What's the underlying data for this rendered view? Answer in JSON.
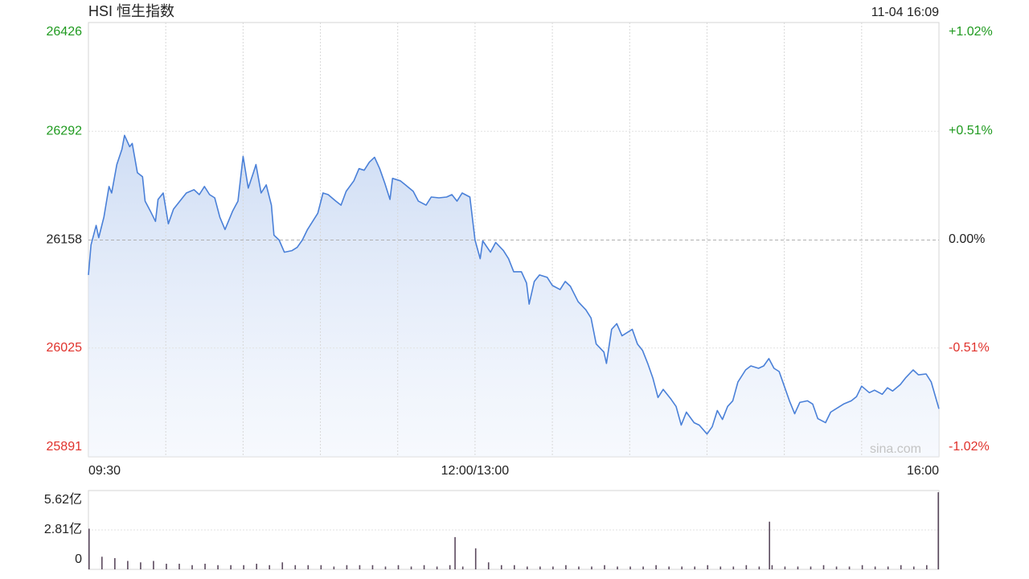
{
  "chart_data": [
    {
      "type": "line",
      "title": "HSI 恒生指数",
      "timestamp": "11-04 16:09",
      "watermark": "sina.com",
      "color": "#4a80d8",
      "up_color": "#1f9a1f",
      "down_color": "#e0322c",
      "grid": true,
      "reference_line": 26158,
      "xlim": [
        0,
        330
      ],
      "xticks": [
        {
          "value": 0,
          "label": "09:30"
        },
        {
          "value": 150,
          "label": "12:00/13:00"
        },
        {
          "value": 330,
          "label": "16:00"
        }
      ],
      "ylim": [
        25891,
        26426
      ],
      "yticks": [
        26426,
        26292,
        26158,
        26025,
        25891
      ],
      "y2lim": [
        -1.02,
        1.02
      ],
      "y2ticks": [
        {
          "value": 1.02,
          "label": "+1.02%"
        },
        {
          "value": 0.51,
          "label": "+0.51%"
        },
        {
          "value": 0,
          "label": "0.00%"
        },
        {
          "value": -0.51,
          "label": "-0.51%"
        },
        {
          "value": -1.02,
          "label": "-1.02%"
        }
      ],
      "x": [
        0,
        1,
        3,
        4,
        6,
        8,
        9,
        11,
        13,
        14,
        16,
        17,
        19,
        21,
        22,
        24,
        26,
        27,
        29,
        31,
        33,
        36,
        38,
        41,
        43,
        45,
        47,
        49,
        51,
        53,
        56,
        58,
        60,
        62,
        64,
        65,
        67,
        69,
        71,
        72,
        74,
        76,
        79,
        81,
        83,
        85,
        87,
        89,
        91,
        93,
        96,
        98,
        100,
        103,
        105,
        107,
        109,
        111,
        113,
        115,
        117,
        118,
        121,
        123,
        126,
        128,
        131,
        133,
        136,
        139,
        141,
        143,
        145,
        148,
        150,
        152,
        153,
        156,
        158,
        161,
        163,
        165,
        168,
        170,
        171,
        173,
        175,
        178,
        180,
        183,
        185,
        187,
        190,
        193,
        195,
        197,
        200,
        201,
        203,
        205,
        207,
        209,
        211,
        213,
        215,
        217,
        219,
        221,
        223,
        226,
        228,
        230,
        232,
        235,
        237,
        240,
        242,
        244,
        246,
        248,
        250,
        252,
        255,
        257,
        260,
        262,
        264,
        266,
        268,
        270,
        272,
        274,
        276,
        279,
        281,
        283,
        286,
        288,
        291,
        293,
        296,
        298,
        300,
        303,
        305,
        308,
        310,
        312,
        315,
        317,
        320,
        322,
        325,
        327,
        330
      ],
      "values": [
        26115,
        26152,
        26176,
        26161,
        26186,
        26224,
        26216,
        26251,
        26270,
        26287,
        26273,
        26277,
        26241,
        26236,
        26206,
        26194,
        26181,
        26208,
        26216,
        26178,
        26196,
        26208,
        26216,
        26220,
        26214,
        26224,
        26214,
        26210,
        26186,
        26171,
        26194,
        26206,
        26261,
        26222,
        26241,
        26251,
        26216,
        26226,
        26201,
        26164,
        26158,
        26143,
        26145,
        26149,
        26158,
        26171,
        26181,
        26191,
        26216,
        26214,
        26206,
        26201,
        26218,
        26231,
        26246,
        26244,
        26254,
        26260,
        26246,
        26228,
        26208,
        26234,
        26231,
        26226,
        26218,
        26206,
        26201,
        26211,
        26210,
        26211,
        26214,
        26206,
        26216,
        26211,
        26158,
        26135,
        26157,
        26143,
        26155,
        26145,
        26135,
        26119,
        26119,
        26105,
        26079,
        26107,
        26115,
        26112,
        26102,
        26097,
        26107,
        26101,
        26082,
        26072,
        26062,
        26030,
        26020,
        26006,
        26048,
        26055,
        26040,
        26044,
        26048,
        26030,
        26022,
        26006,
        25988,
        25964,
        25974,
        25962,
        25953,
        25930,
        25946,
        25933,
        25930,
        25919,
        25928,
        25948,
        25937,
        25953,
        25960,
        25983,
        25998,
        26003,
        26000,
        26003,
        26012,
        26000,
        25996,
        25978,
        25960,
        25944,
        25958,
        25960,
        25956,
        25938,
        25933,
        25946,
        25952,
        25956,
        25960,
        25965,
        25978,
        25970,
        25973,
        25968,
        25976,
        25972,
        25980,
        25988,
        25998,
        25992,
        25993,
        25983,
        25950
      ]
    },
    {
      "type": "bar",
      "color": "#5b4a5e",
      "grid": true,
      "xlim": [
        0,
        330
      ],
      "ylim": [
        0,
        5.62
      ],
      "yticks": [
        {
          "value": 5.62,
          "label": "5.62亿"
        },
        {
          "value": 2.81,
          "label": "2.81亿"
        },
        0
      ],
      "x": [
        0,
        5,
        10,
        15,
        20,
        25,
        30,
        35,
        40,
        45,
        50,
        55,
        60,
        65,
        70,
        75,
        80,
        85,
        90,
        95,
        100,
        105,
        110,
        115,
        120,
        125,
        130,
        135,
        140,
        142,
        145,
        150,
        155,
        160,
        165,
        170,
        175,
        180,
        185,
        190,
        195,
        200,
        205,
        210,
        215,
        220,
        225,
        230,
        235,
        240,
        245,
        250,
        255,
        260,
        264,
        265,
        270,
        275,
        280,
        285,
        290,
        295,
        300,
        305,
        310,
        315,
        320,
        325,
        330
      ],
      "values": [
        2.9,
        0.9,
        0.8,
        0.6,
        0.5,
        0.6,
        0.4,
        0.4,
        0.3,
        0.4,
        0.3,
        0.3,
        0.3,
        0.4,
        0.3,
        0.5,
        0.3,
        0.3,
        0.3,
        0.2,
        0.3,
        0.3,
        0.3,
        0.2,
        0.3,
        0.2,
        0.3,
        0.2,
        0.3,
        2.3,
        0.2,
        1.5,
        0.5,
        0.3,
        0.3,
        0.2,
        0.2,
        0.2,
        0.3,
        0.2,
        0.2,
        0.3,
        0.2,
        0.2,
        0.2,
        0.3,
        0.2,
        0.2,
        0.2,
        0.3,
        0.2,
        0.2,
        0.3,
        0.2,
        3.4,
        0.3,
        0.2,
        0.2,
        0.2,
        0.3,
        0.2,
        0.2,
        0.3,
        0.2,
        0.2,
        0.3,
        0.2,
        0.3,
        5.5
      ]
    }
  ]
}
